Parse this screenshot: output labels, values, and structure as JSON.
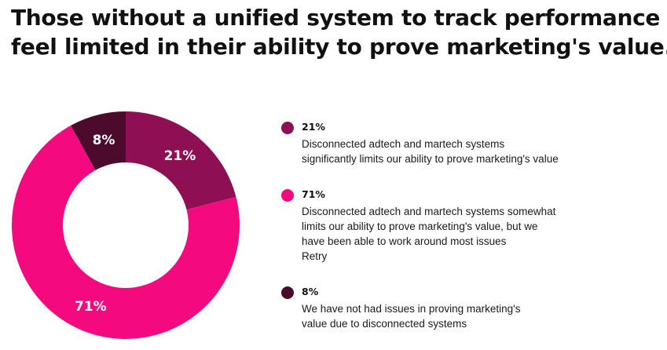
{
  "title_lines": [
    "Those without a unified system to track performance",
    "feel limited in their ability to prove marketing's value."
  ],
  "chart_data": {
    "type": "pie",
    "donut": true,
    "slices": [
      {
        "label": "21%",
        "value": 21,
        "color": "#8e0f53"
      },
      {
        "label": "71%",
        "value": 71,
        "color": "#f4097f"
      },
      {
        "label": "8%",
        "value": 8,
        "color": "#4c0a2c"
      }
    ]
  },
  "legend": [
    {
      "pct": "21%",
      "color": "#8e0f53",
      "lines": [
        "Disconnected adtech and martech systems",
        "significantly limits our ability to prove marketing's value"
      ]
    },
    {
      "pct": "71%",
      "color": "#f4097f",
      "lines": [
        "Disconnected adtech and martech systems somewhat",
        "limits our ability to prove marketing's value, but we",
        "have been able to work around most issues",
        "Retry"
      ]
    },
    {
      "pct": "8%",
      "color": "#4c0a2c",
      "lines": [
        "We have not had issues in proving marketing's",
        "value due to disconnected systems"
      ]
    }
  ]
}
